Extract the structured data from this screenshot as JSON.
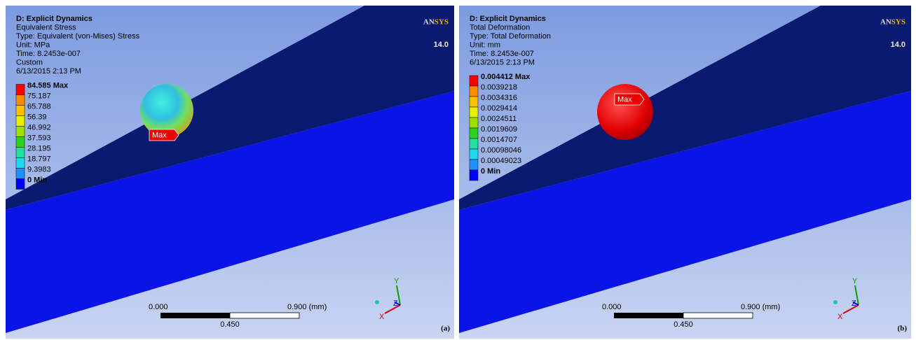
{
  "panels": [
    {
      "header": [
        "D: Explicit Dynamics",
        "Equivalent Stress",
        "Type: Equivalent (von-Mises) Stress",
        "Unit: MPa",
        "Time: 8.2453e-007",
        "Custom",
        "6/13/2015 2:13 PM"
      ],
      "legend": [
        "84.585 Max",
        "75.187",
        "65.788",
        "56.39",
        "46.992",
        "37.593",
        "28.195",
        "18.797",
        "9.3983",
        "0 Min"
      ],
      "max_tag": "Max",
      "scale": {
        "left": "0.000",
        "right": "0.900 (mm)",
        "mid": "0.450"
      },
      "axes": {
        "y": "Y",
        "x": "X",
        "z": "Z"
      },
      "logo": {
        "name": "ANSYS",
        "version": "14.0"
      },
      "label": "(a)"
    },
    {
      "header": [
        "D: Explicit Dynamics",
        "Total Deformation",
        "Type: Total Deformation",
        "Unit: mm",
        "Time: 8.2453e-007",
        "6/13/2015 2:13 PM"
      ],
      "legend": [
        "0.004412 Max",
        "0.0039218",
        "0.0034316",
        "0.0029414",
        "0.0024511",
        "0.0019609",
        "0.0014707",
        "0.00098046",
        "0.00049023",
        "0 Min"
      ],
      "max_tag": "Max",
      "scale": {
        "left": "0.000",
        "right": "0.900 (mm)",
        "mid": "0.450"
      },
      "axes": {
        "y": "Y",
        "x": "X",
        "z": "Z"
      },
      "logo": {
        "name": "ANSYS",
        "version": "14.0"
      },
      "label": "(b)"
    }
  ]
}
